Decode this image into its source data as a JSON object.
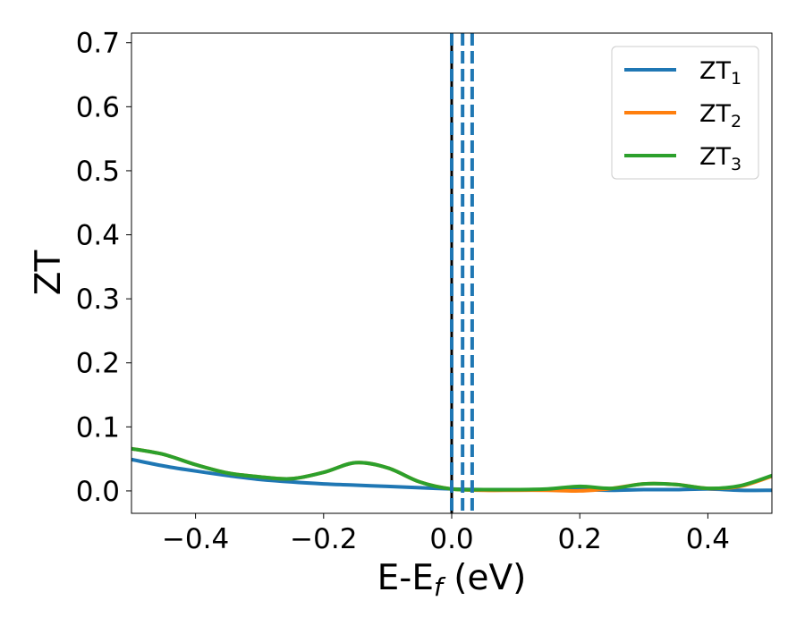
{
  "chart_data": {
    "type": "line",
    "xlabel": "E-E",
    "xlabel_sub": "f",
    "xlabel_unit": " (eV)",
    "ylabel": "ZT",
    "xlim": [
      -0.5,
      0.5
    ],
    "ylim": [
      -0.035,
      0.715
    ],
    "grid": false,
    "legend_position": "top-right",
    "x_ticks": [
      -0.4,
      -0.2,
      0.0,
      0.2,
      0.4
    ],
    "x_tick_labels": [
      "−0.4",
      "−0.2",
      "0.0",
      "0.2",
      "0.4"
    ],
    "y_ticks": [
      0.0,
      0.1,
      0.2,
      0.3,
      0.4,
      0.5,
      0.6,
      0.7
    ],
    "y_tick_labels": [
      "0.0",
      "0.1",
      "0.2",
      "0.3",
      "0.4",
      "0.5",
      "0.6",
      "0.7"
    ],
    "vertical_lines": [
      {
        "x": 0.0,
        "color": "#000000",
        "style": "solid"
      },
      {
        "x": 0.0,
        "color": "#1f77b4",
        "style": "dashed"
      },
      {
        "x": 0.017,
        "color": "#1f77b4",
        "style": "dashed"
      },
      {
        "x": 0.032,
        "color": "#1f77b4",
        "style": "dashed"
      }
    ],
    "series": [
      {
        "name": "ZT",
        "name_sub": "1",
        "color": "#1f77b4",
        "x": [
          -0.5,
          -0.45,
          -0.4,
          -0.35,
          -0.3,
          -0.25,
          -0.2,
          -0.15,
          -0.1,
          -0.05,
          0.0,
          0.05,
          0.1,
          0.15,
          0.2,
          0.25,
          0.3,
          0.35,
          0.4,
          0.45,
          0.5
        ],
        "y": [
          0.049,
          0.039,
          0.031,
          0.024,
          0.018,
          0.014,
          0.011,
          0.009,
          0.007,
          0.005,
          0.003,
          0.002,
          0.002,
          0.002,
          0.002,
          0.001,
          0.002,
          0.002,
          0.003,
          0.001,
          0.001
        ]
      },
      {
        "name": "ZT",
        "name_sub": "2",
        "color": "#ff7f0e",
        "x": [
          -0.5,
          -0.45,
          -0.4,
          -0.35,
          -0.3,
          -0.25,
          -0.2,
          -0.15,
          -0.1,
          -0.05,
          0.0,
          0.05,
          0.1,
          0.15,
          0.2,
          0.25,
          0.3,
          0.35,
          0.4,
          0.45,
          0.5
        ],
        "y": [
          0.066,
          0.057,
          0.041,
          0.028,
          0.022,
          0.019,
          0.029,
          0.044,
          0.036,
          0.014,
          0.003,
          0.001,
          0.001,
          0.001,
          0.0,
          0.004,
          0.011,
          0.01,
          0.004,
          0.007,
          0.023
        ]
      },
      {
        "name": "ZT",
        "name_sub": "3",
        "color": "#2ca02c",
        "x": [
          -0.5,
          -0.45,
          -0.4,
          -0.35,
          -0.3,
          -0.25,
          -0.2,
          -0.15,
          -0.1,
          -0.05,
          0.0,
          0.05,
          0.1,
          0.15,
          0.2,
          0.25,
          0.3,
          0.35,
          0.4,
          0.45,
          0.5
        ],
        "y": [
          0.066,
          0.057,
          0.041,
          0.028,
          0.022,
          0.019,
          0.029,
          0.044,
          0.036,
          0.014,
          0.003,
          0.002,
          0.002,
          0.003,
          0.007,
          0.004,
          0.011,
          0.01,
          0.004,
          0.008,
          0.024
        ]
      }
    ]
  }
}
